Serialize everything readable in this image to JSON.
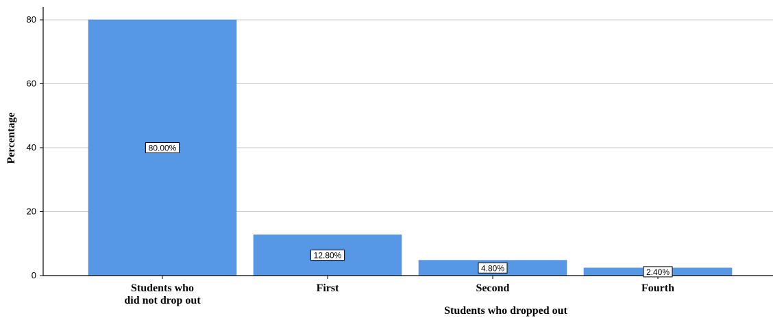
{
  "chart_data": {
    "type": "bar",
    "categories": [
      "Students who\ndid not drop out",
      "First",
      "Second",
      "Fourth"
    ],
    "values": [
      80.0,
      12.8,
      4.8,
      2.4
    ],
    "data_labels": [
      "80.00%",
      "12.80%",
      "4.80%",
      "2.40%"
    ],
    "title": "",
    "xlabel": "Students who dropped out",
    "ylabel": "Percentage",
    "ylim": [
      0,
      80
    ],
    "yticks": [
      0,
      20,
      40,
      60,
      80
    ],
    "grid": true,
    "legend": "none",
    "colors": {
      "bar": "#5697e6",
      "grid": "#c8c8c8",
      "axis": "#000000"
    }
  }
}
